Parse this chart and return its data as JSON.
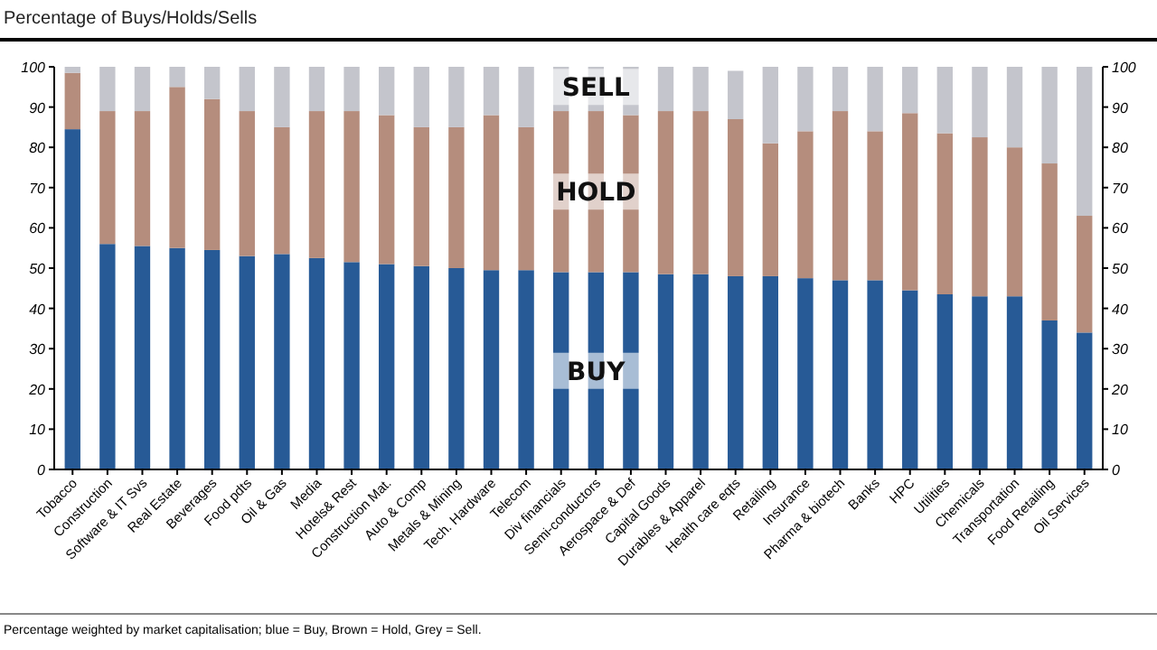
{
  "chart_data": {
    "type": "bar",
    "stacked": true,
    "title": "Percentage of Buys/Holds/Sells",
    "categories": [
      "Tobacco",
      "Construction",
      "Software & IT Svs",
      "Real Estate",
      "Beverages",
      "Food pdts",
      "Oil & Gas",
      "Media",
      "Hotels& Rest",
      "Construction Mat.",
      "Auto & Comp",
      "Metals & Mining",
      "Tech. Hardware",
      "Telecom",
      "Div financials",
      "Semi-conductors",
      "Aerospace & Def",
      "Capital Goods",
      "Durables & Apparel",
      "Health care eqts",
      "Retailing",
      "Insurance",
      "Pharma & biotech",
      "Banks",
      "HPC",
      "Utilities",
      "Chemicals",
      "Transportation",
      "Food Retailing",
      "Oil Services"
    ],
    "series": [
      {
        "name": "BUY",
        "color": "#275a96",
        "values": [
          84.5,
          56,
          55.5,
          55,
          54.5,
          53,
          53.5,
          52.5,
          51.5,
          51,
          50.5,
          50,
          49.5,
          49.5,
          49,
          49,
          49,
          48.5,
          48.5,
          48,
          48,
          47.5,
          47,
          47,
          44.5,
          43.5,
          43,
          43,
          37,
          34
        ]
      },
      {
        "name": "HOLD",
        "color": "#b58d7d",
        "values": [
          14,
          33,
          33.5,
          40,
          37.5,
          36,
          31.5,
          36.5,
          37.5,
          37,
          34.5,
          35,
          38.5,
          35.5,
          40,
          40,
          39,
          40.5,
          40.5,
          39,
          33,
          36.5,
          42,
          37,
          44,
          40,
          39.5,
          37,
          39,
          29
        ]
      },
      {
        "name": "SELL",
        "color": "#c4c5cc",
        "values": [
          1.5,
          11,
          11,
          5,
          8,
          11,
          15,
          11,
          11,
          12,
          15,
          15,
          12,
          15,
          11,
          11,
          12,
          11,
          11,
          12,
          19,
          16,
          11,
          16,
          11.5,
          16.5,
          17.5,
          20,
          24,
          37
        ]
      }
    ],
    "ylim": [
      0,
      100
    ],
    "yticks": [
      0,
      10,
      20,
      30,
      40,
      50,
      60,
      70,
      80,
      90,
      100
    ],
    "y2lim": [
      0,
      100
    ],
    "y2ticks": [
      0,
      10,
      20,
      30,
      40,
      50,
      60,
      70,
      80,
      90,
      100
    ],
    "grid": false,
    "annotations": [
      "Percentage weighted by market capitalisation; blue = Buy, Brown = Hold, Grey = Sell."
    ]
  }
}
